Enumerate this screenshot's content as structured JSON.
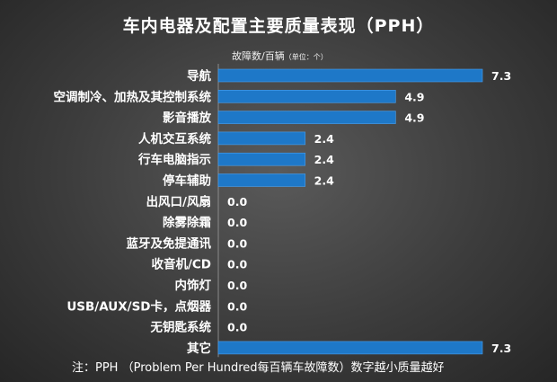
{
  "title": "车内电器及配置主要质量表现（PPH）",
  "unit_label": "故障数/百辆",
  "unit_label_small": "（单位：个）",
  "footnote": "注：PPH （Problem Per Hundred每百辆车故障数）数字越小质量越好",
  "colors": {
    "bar": "#1e78c8",
    "bar_highlight": "#4aa0ee",
    "text": "#ffffff"
  },
  "chart_data": {
    "type": "bar",
    "orientation": "horizontal",
    "title": "车内电器及配置主要质量表现（PPH）",
    "xlabel": "故障数/百辆（单位：个）",
    "ylabel": "",
    "categories": [
      "导航",
      "空调制冷、加热及其控制系统",
      "影音播放",
      "人机交互系统",
      "行车电脑指示",
      "停车辅助",
      "出风口/风扇",
      "除雾除霜",
      "蓝牙及免提通讯",
      "收音机/CD",
      "内饰灯",
      "USB/AUX/SD卡，点烟器",
      "无钥匙系统",
      "其它"
    ],
    "values": [
      7.3,
      4.9,
      4.9,
      2.4,
      2.4,
      2.4,
      0.0,
      0.0,
      0.0,
      0.0,
      0.0,
      0.0,
      0.0,
      7.3
    ],
    "value_labels": [
      "7.3",
      "4.9",
      "4.9",
      "2.4",
      "2.4",
      "2.4",
      "0.0",
      "0.0",
      "0.0",
      "0.0",
      "0.0",
      "0.0",
      "0.0",
      "7.3"
    ],
    "xlim": [
      0,
      7.3
    ],
    "grid": false,
    "legend": "none"
  }
}
